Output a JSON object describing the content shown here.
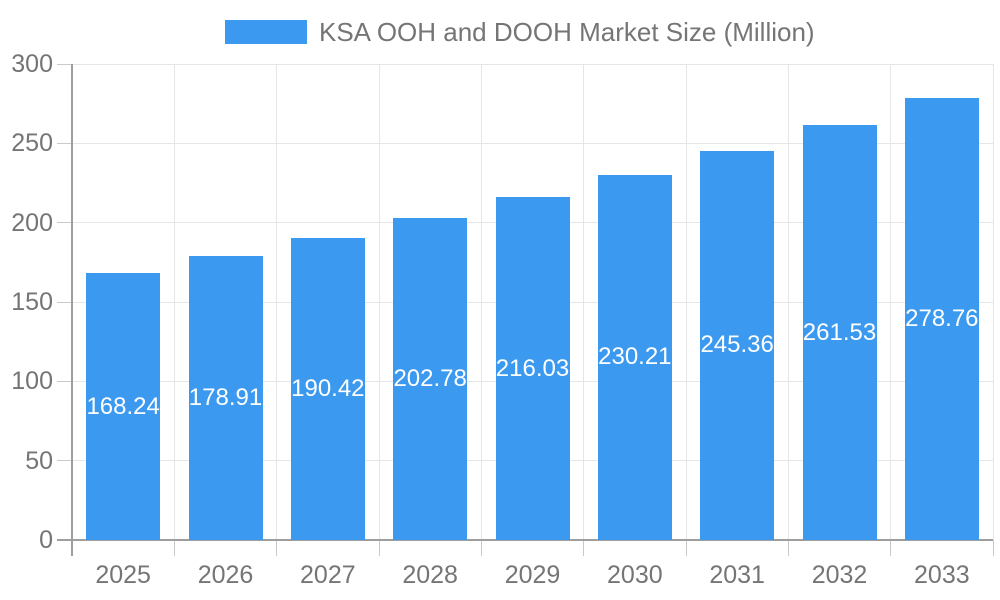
{
  "chart_data": {
    "type": "bar",
    "title": "KSA OOH and DOOH Market Size (Million)",
    "legend_position": "top",
    "categories": [
      "2025",
      "2026",
      "2027",
      "2028",
      "2029",
      "2030",
      "2031",
      "2032",
      "2033"
    ],
    "series": [
      {
        "name": "KSA OOH and DOOH Market Size (Million)",
        "values": [
          168.24,
          178.91,
          190.42,
          202.78,
          216.03,
          230.21,
          245.36,
          261.53,
          278.76
        ]
      }
    ],
    "xlabel": "",
    "ylabel": "",
    "ylim": [
      0,
      300
    ],
    "yticks": [
      0,
      50,
      100,
      150,
      200,
      250,
      300
    ],
    "grid": true,
    "value_label_position": "inside-center",
    "colors": {
      "bar": "#3b99f0",
      "value_label": "#ffffff",
      "tick_label": "#757575",
      "axis": "#9e9e9e",
      "tick": "#c9c9c9",
      "gridline": "#e6e6e6",
      "background": "#ffffff"
    }
  }
}
